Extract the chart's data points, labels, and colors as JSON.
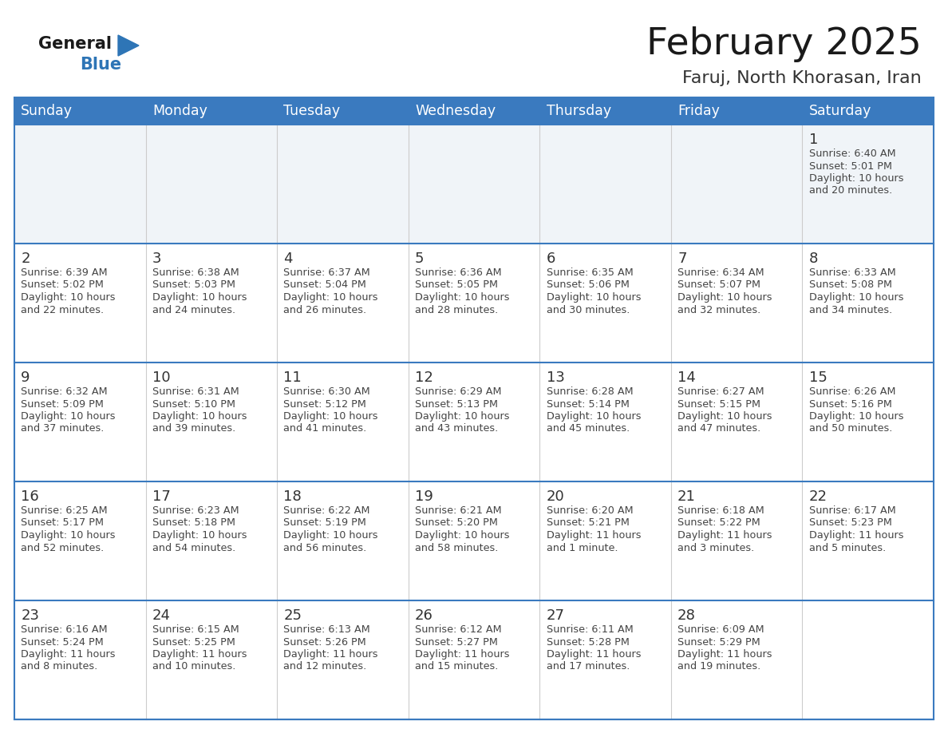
{
  "title": "February 2025",
  "subtitle": "Faruj, North Khorasan, Iran",
  "header_bg_color": "#3a7abf",
  "header_text_color": "#ffffff",
  "border_color": "#3a7abf",
  "row_separator_color": "#3a7abf",
  "col_separator_color": "#cccccc",
  "day_number_color": "#333333",
  "text_color": "#444444",
  "cell_bg_color": "#ffffff",
  "first_row_bg": "#f0f4f8",
  "days_of_week": [
    "Sunday",
    "Monday",
    "Tuesday",
    "Wednesday",
    "Thursday",
    "Friday",
    "Saturday"
  ],
  "calendar_data": [
    [
      null,
      null,
      null,
      null,
      null,
      null,
      {
        "day": 1,
        "sunrise": "6:40 AM",
        "sunset": "5:01 PM",
        "daylight": "10 hours\nand 20 minutes."
      }
    ],
    [
      {
        "day": 2,
        "sunrise": "6:39 AM",
        "sunset": "5:02 PM",
        "daylight": "10 hours\nand 22 minutes."
      },
      {
        "day": 3,
        "sunrise": "6:38 AM",
        "sunset": "5:03 PM",
        "daylight": "10 hours\nand 24 minutes."
      },
      {
        "day": 4,
        "sunrise": "6:37 AM",
        "sunset": "5:04 PM",
        "daylight": "10 hours\nand 26 minutes."
      },
      {
        "day": 5,
        "sunrise": "6:36 AM",
        "sunset": "5:05 PM",
        "daylight": "10 hours\nand 28 minutes."
      },
      {
        "day": 6,
        "sunrise": "6:35 AM",
        "sunset": "5:06 PM",
        "daylight": "10 hours\nand 30 minutes."
      },
      {
        "day": 7,
        "sunrise": "6:34 AM",
        "sunset": "5:07 PM",
        "daylight": "10 hours\nand 32 minutes."
      },
      {
        "day": 8,
        "sunrise": "6:33 AM",
        "sunset": "5:08 PM",
        "daylight": "10 hours\nand 34 minutes."
      }
    ],
    [
      {
        "day": 9,
        "sunrise": "6:32 AM",
        "sunset": "5:09 PM",
        "daylight": "10 hours\nand 37 minutes."
      },
      {
        "day": 10,
        "sunrise": "6:31 AM",
        "sunset": "5:10 PM",
        "daylight": "10 hours\nand 39 minutes."
      },
      {
        "day": 11,
        "sunrise": "6:30 AM",
        "sunset": "5:12 PM",
        "daylight": "10 hours\nand 41 minutes."
      },
      {
        "day": 12,
        "sunrise": "6:29 AM",
        "sunset": "5:13 PM",
        "daylight": "10 hours\nand 43 minutes."
      },
      {
        "day": 13,
        "sunrise": "6:28 AM",
        "sunset": "5:14 PM",
        "daylight": "10 hours\nand 45 minutes."
      },
      {
        "day": 14,
        "sunrise": "6:27 AM",
        "sunset": "5:15 PM",
        "daylight": "10 hours\nand 47 minutes."
      },
      {
        "day": 15,
        "sunrise": "6:26 AM",
        "sunset": "5:16 PM",
        "daylight": "10 hours\nand 50 minutes."
      }
    ],
    [
      {
        "day": 16,
        "sunrise": "6:25 AM",
        "sunset": "5:17 PM",
        "daylight": "10 hours\nand 52 minutes."
      },
      {
        "day": 17,
        "sunrise": "6:23 AM",
        "sunset": "5:18 PM",
        "daylight": "10 hours\nand 54 minutes."
      },
      {
        "day": 18,
        "sunrise": "6:22 AM",
        "sunset": "5:19 PM",
        "daylight": "10 hours\nand 56 minutes."
      },
      {
        "day": 19,
        "sunrise": "6:21 AM",
        "sunset": "5:20 PM",
        "daylight": "10 hours\nand 58 minutes."
      },
      {
        "day": 20,
        "sunrise": "6:20 AM",
        "sunset": "5:21 PM",
        "daylight": "11 hours\nand 1 minute."
      },
      {
        "day": 21,
        "sunrise": "6:18 AM",
        "sunset": "5:22 PM",
        "daylight": "11 hours\nand 3 minutes."
      },
      {
        "day": 22,
        "sunrise": "6:17 AM",
        "sunset": "5:23 PM",
        "daylight": "11 hours\nand 5 minutes."
      }
    ],
    [
      {
        "day": 23,
        "sunrise": "6:16 AM",
        "sunset": "5:24 PM",
        "daylight": "11 hours\nand 8 minutes."
      },
      {
        "day": 24,
        "sunrise": "6:15 AM",
        "sunset": "5:25 PM",
        "daylight": "11 hours\nand 10 minutes."
      },
      {
        "day": 25,
        "sunrise": "6:13 AM",
        "sunset": "5:26 PM",
        "daylight": "11 hours\nand 12 minutes."
      },
      {
        "day": 26,
        "sunrise": "6:12 AM",
        "sunset": "5:27 PM",
        "daylight": "11 hours\nand 15 minutes."
      },
      {
        "day": 27,
        "sunrise": "6:11 AM",
        "sunset": "5:28 PM",
        "daylight": "11 hours\nand 17 minutes."
      },
      {
        "day": 28,
        "sunrise": "6:09 AM",
        "sunset": "5:29 PM",
        "daylight": "11 hours\nand 19 minutes."
      },
      null
    ]
  ]
}
